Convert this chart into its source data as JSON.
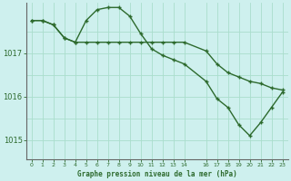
{
  "background_color": "#cef0ee",
  "grid_color": "#aaddcc",
  "line_color": "#2d6a2d",
  "xlabel": "Graphe pression niveau de la mer (hPa)",
  "xlim": [
    -0.5,
    23.5
  ],
  "ylim": [
    1014.55,
    1018.15
  ],
  "yticks": [
    1015,
    1016,
    1017
  ],
  "xticks": [
    0,
    1,
    2,
    3,
    4,
    5,
    6,
    7,
    8,
    9,
    10,
    11,
    12,
    13,
    14,
    16,
    17,
    18,
    19,
    20,
    21,
    22,
    23
  ],
  "xtick_labels": [
    "0",
    "1",
    "2",
    "3",
    "4",
    "5",
    "6",
    "7",
    "8",
    "9",
    "10",
    "11",
    "12",
    "13",
    "14",
    "16",
    "17",
    "18",
    "19",
    "20",
    "21",
    "22",
    "23"
  ],
  "series1_x": [
    0,
    1,
    2,
    3,
    4,
    5,
    6,
    7,
    8,
    9,
    10,
    11,
    12,
    13,
    14,
    16,
    17,
    18,
    19,
    20,
    21,
    22,
    23
  ],
  "series1_y": [
    1017.75,
    1017.75,
    1017.65,
    1017.35,
    1017.25,
    1017.25,
    1017.25,
    1017.25,
    1017.25,
    1017.25,
    1017.25,
    1017.25,
    1017.25,
    1017.25,
    1017.25,
    1017.05,
    1016.75,
    1016.55,
    1016.45,
    1016.35,
    1016.3,
    1016.2,
    1016.15
  ],
  "series2_x": [
    0,
    1,
    2,
    3,
    4,
    5,
    6,
    7,
    8,
    9,
    10,
    11,
    12,
    13,
    14,
    16,
    17,
    18,
    19,
    20,
    21,
    22,
    23
  ],
  "series2_y": [
    1017.75,
    1017.75,
    1017.65,
    1017.35,
    1017.25,
    1017.75,
    1018.0,
    1018.05,
    1018.05,
    1017.85,
    1017.45,
    1017.1,
    1016.95,
    1016.85,
    1016.75,
    1016.35,
    1015.95,
    1015.75,
    1015.35,
    1015.1,
    1015.4,
    1015.75,
    1016.1
  ]
}
